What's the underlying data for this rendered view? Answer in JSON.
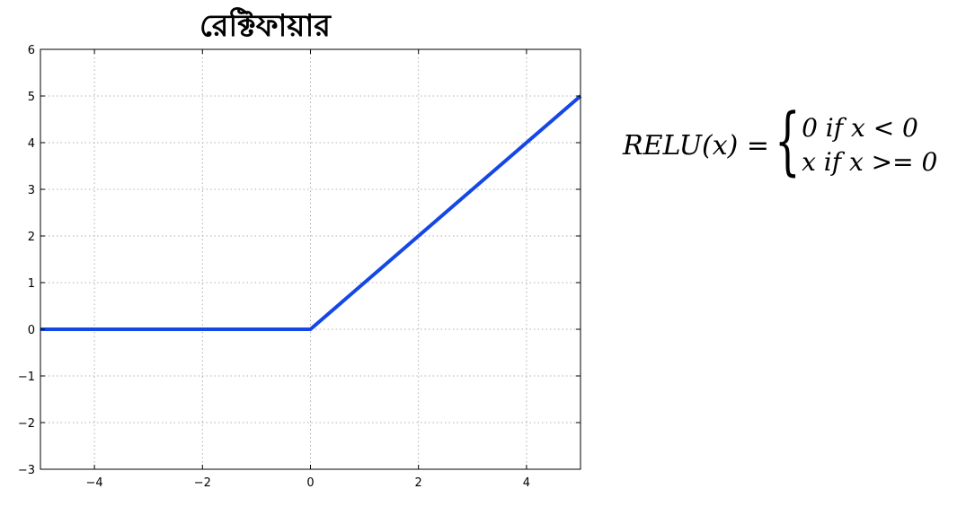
{
  "chart_data": {
    "type": "line",
    "title": "রেক্টিফায়ার",
    "xlabel": "",
    "ylabel": "",
    "xlim": [
      -5,
      5
    ],
    "ylim": [
      -3,
      6
    ],
    "xticks": [
      -4,
      -2,
      0,
      2,
      4
    ],
    "xtick_labels": [
      "−4",
      "−2",
      "0",
      "2",
      "4"
    ],
    "yticks": [
      -3,
      -2,
      -1,
      0,
      1,
      2,
      3,
      4,
      5,
      6
    ],
    "ytick_labels": [
      "−3",
      "−2",
      "−1",
      "0",
      "1",
      "2",
      "3",
      "4",
      "5",
      "6"
    ],
    "grid": true,
    "series": [
      {
        "color": "#1447e6",
        "x": [
          -5,
          0,
          5
        ],
        "y": [
          0,
          0,
          5
        ]
      }
    ]
  },
  "formula": {
    "lhs": "RELU(x) =",
    "case1": "0 if  x < 0",
    "case2": "x if  x >= 0"
  }
}
